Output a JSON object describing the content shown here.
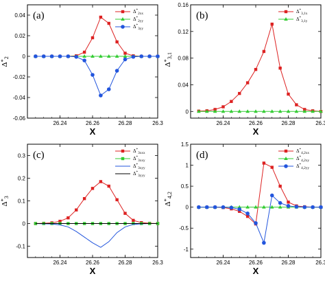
{
  "chart_data": [
    {
      "type": "line",
      "panel_label": "(a)",
      "xlabel": "X",
      "ylabel": "Δ*2",
      "xlim": [
        26.22,
        26.3
      ],
      "ylim": [
        -0.06,
        0.05
      ],
      "xticks": [
        "26.24",
        "26.26",
        "26.28",
        "26.3"
      ],
      "xtick_values": [
        26.24,
        26.26,
        26.28,
        26.3
      ],
      "yticks": [
        "-0.06",
        "-0.04",
        "-0.02",
        "0",
        "0.02",
        "0.04"
      ],
      "ytick_values": [
        -0.06,
        -0.04,
        -0.02,
        0,
        0.02,
        0.04
      ],
      "x": [
        26.225,
        26.23,
        26.235,
        26.24,
        26.245,
        26.25,
        26.255,
        26.26,
        26.265,
        26.27,
        26.275,
        26.28,
        26.285,
        26.29,
        26.295,
        26.3
      ],
      "series": [
        {
          "name": "Δ*2xx",
          "color": "#dd2222",
          "marker": "square",
          "values": [
            0,
            0,
            0,
            0,
            0,
            0.0005,
            0.004,
            0.018,
            0.038,
            0.032,
            0.014,
            0.003,
            0.0005,
            0,
            0,
            0
          ]
        },
        {
          "name": "Δ*2yy",
          "color": "#33cc33",
          "marker": "triangle",
          "values": [
            0,
            0,
            0,
            0,
            0,
            0,
            0,
            0,
            0,
            0,
            0,
            0,
            0,
            0,
            0,
            0
          ]
        },
        {
          "name": "Δ*3yy",
          "color": "#2255dd",
          "marker": "circle",
          "values": [
            0,
            0,
            0,
            0,
            0,
            -0.0005,
            -0.004,
            -0.018,
            -0.038,
            -0.032,
            -0.014,
            -0.003,
            -0.0005,
            0,
            0,
            0
          ]
        }
      ]
    },
    {
      "type": "line",
      "panel_label": "(b)",
      "xlabel": "X",
      "ylabel": "Δ*3,1",
      "xlim": [
        26.22,
        26.3
      ],
      "ylim": [
        -0.01,
        0.16
      ],
      "xticks": [
        "26.24",
        "26.26",
        "26.28",
        "26.3"
      ],
      "xtick_values": [
        26.24,
        26.26,
        26.28,
        26.3
      ],
      "yticks": [
        "0",
        "0.04",
        "0.08",
        "0.12",
        "0.16"
      ],
      "ytick_values": [
        0,
        0.04,
        0.08,
        0.12,
        0.16
      ],
      "x": [
        26.225,
        26.23,
        26.235,
        26.24,
        26.245,
        26.25,
        26.255,
        26.26,
        26.265,
        26.27,
        26.275,
        26.28,
        26.285,
        26.29,
        26.295,
        26.3
      ],
      "series": [
        {
          "name": "Δ*3,1x",
          "color": "#dd2222",
          "marker": "square",
          "values": [
            0.0005,
            0.001,
            0.003,
            0.007,
            0.015,
            0.027,
            0.043,
            0.063,
            0.09,
            0.131,
            0.065,
            0.026,
            0.01,
            0.003,
            0.001,
            0
          ]
        },
        {
          "name": "Δ*3,1y",
          "color": "#33cc33",
          "marker": "triangle",
          "values": [
            0,
            0,
            0,
            0,
            0,
            0,
            0,
            0,
            0,
            0,
            0,
            0,
            0,
            0,
            0,
            0
          ]
        }
      ]
    },
    {
      "type": "line",
      "panel_label": "(c)",
      "xlabel": "X",
      "ylabel": "Δ*3",
      "xlim": [
        26.22,
        26.3
      ],
      "ylim": [
        -0.15,
        0.35
      ],
      "xticks": [
        "26.24",
        "26.26",
        "26.28",
        "26.3"
      ],
      "xtick_values": [
        26.24,
        26.26,
        26.28,
        26.3
      ],
      "yticks": [
        "-0.1",
        "0",
        "0.1",
        "0.2",
        "0.3"
      ],
      "ytick_values": [
        -0.1,
        0,
        0.1,
        0.2,
        0.3
      ],
      "x": [
        26.225,
        26.23,
        26.235,
        26.24,
        26.245,
        26.25,
        26.255,
        26.26,
        26.265,
        26.27,
        26.275,
        26.28,
        26.285,
        26.29,
        26.295,
        26.3
      ],
      "series": [
        {
          "name": "Δ*3xxx",
          "color": "#dd2222",
          "marker": "square",
          "values": [
            0,
            0.001,
            0.003,
            0.01,
            0.025,
            0.06,
            0.11,
            0.155,
            0.185,
            0.165,
            0.105,
            0.045,
            0.014,
            0.004,
            0.001,
            0
          ]
        },
        {
          "name": "Δ*3xxy",
          "color": "#33cc33",
          "marker": "square",
          "values": [
            0,
            0,
            0,
            0,
            0,
            0,
            0,
            0,
            0,
            0,
            0,
            0,
            0,
            0,
            0,
            0
          ]
        },
        {
          "name": "Δ*3xyy",
          "color": "#2255dd",
          "marker": "none",
          "values": [
            0,
            -0.001,
            -0.002,
            -0.006,
            -0.015,
            -0.035,
            -0.06,
            -0.085,
            -0.105,
            -0.08,
            -0.04,
            -0.015,
            -0.004,
            -0.001,
            0,
            0
          ]
        },
        {
          "name": "Δ*3yyy",
          "color": "#000000",
          "marker": "none",
          "values": [
            0,
            0,
            0,
            0,
            0,
            0,
            0,
            0,
            0,
            0,
            0,
            0,
            0,
            0,
            0,
            0
          ]
        }
      ]
    },
    {
      "type": "line",
      "panel_label": "(d)",
      "xlabel": "X",
      "ylabel": "Δ*4,2",
      "xlim": [
        26.22,
        26.3
      ],
      "ylim": [
        -1.2,
        1.5
      ],
      "xticks": [
        "26.24",
        "26.26",
        "26.28",
        "26.3"
      ],
      "xtick_values": [
        26.24,
        26.26,
        26.28,
        26.3
      ],
      "yticks": [
        "-1",
        "-0.5",
        "0",
        "0.5",
        "1",
        "1.5"
      ],
      "ytick_values": [
        -1,
        -0.5,
        0,
        0.5,
        1,
        1.5
      ],
      "x": [
        26.225,
        26.23,
        26.235,
        26.24,
        26.245,
        26.25,
        26.255,
        26.26,
        26.265,
        26.27,
        26.275,
        26.28,
        26.285,
        26.29,
        26.295,
        26.3
      ],
      "series": [
        {
          "name": "Δ*4,2xx",
          "color": "#dd2222",
          "marker": "square",
          "values": [
            0,
            0,
            0,
            -0.01,
            -0.04,
            -0.1,
            -0.22,
            -0.4,
            1.05,
            0.95,
            0.5,
            0.12,
            0.03,
            0.01,
            0,
            0
          ]
        },
        {
          "name": "Δ*4,2xy",
          "color": "#33cc33",
          "marker": "triangle",
          "values": [
            0,
            0,
            0,
            0,
            0,
            0,
            0,
            0,
            0,
            0,
            0,
            0,
            0,
            0,
            0,
            0
          ]
        },
        {
          "name": "Δ*4,2yy",
          "color": "#2255dd",
          "marker": "circle",
          "values": [
            0,
            0,
            0,
            0,
            -0.01,
            -0.05,
            -0.15,
            -0.38,
            -0.85,
            0.28,
            0.1,
            0.03,
            0.01,
            0,
            0,
            0
          ]
        }
      ]
    }
  ]
}
